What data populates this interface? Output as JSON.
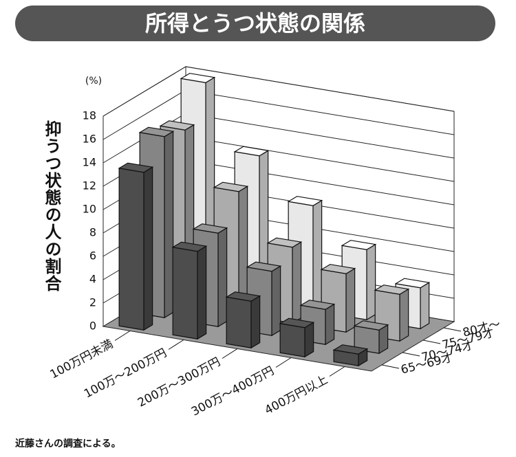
{
  "chart_data": {
    "type": "bar3d",
    "title": "所得とうつ状態の関係",
    "y_label": "抑うつ状態の人の割合",
    "unit_label": "(%)",
    "footnote": "近藤さんの調査による。",
    "categories": [
      "100万円未満",
      "100万～200万円",
      "200万～300万円",
      "300万～400万円",
      "400万円以上"
    ],
    "series": [
      {
        "name": "65～69才",
        "color": "#4d4d4d",
        "values": [
          13.5,
          7.5,
          4.0,
          2.5,
          1.0
        ]
      },
      {
        "name": "70～74才",
        "color": "#858585",
        "values": [
          15.5,
          8.0,
          5.5,
          3.0,
          2.0
        ]
      },
      {
        "name": "75～79才",
        "color": "#acacac",
        "values": [
          15.0,
          10.5,
          6.5,
          5.0,
          4.0
        ]
      },
      {
        "name": "80才～",
        "color": "#e8e8e8",
        "values": [
          18.0,
          12.5,
          9.0,
          6.0,
          3.5
        ]
      }
    ],
    "ylim": [
      0,
      18
    ],
    "yticks": [
      0,
      2,
      4,
      6,
      8,
      10,
      12,
      14,
      16,
      18
    ],
    "grid": true
  }
}
